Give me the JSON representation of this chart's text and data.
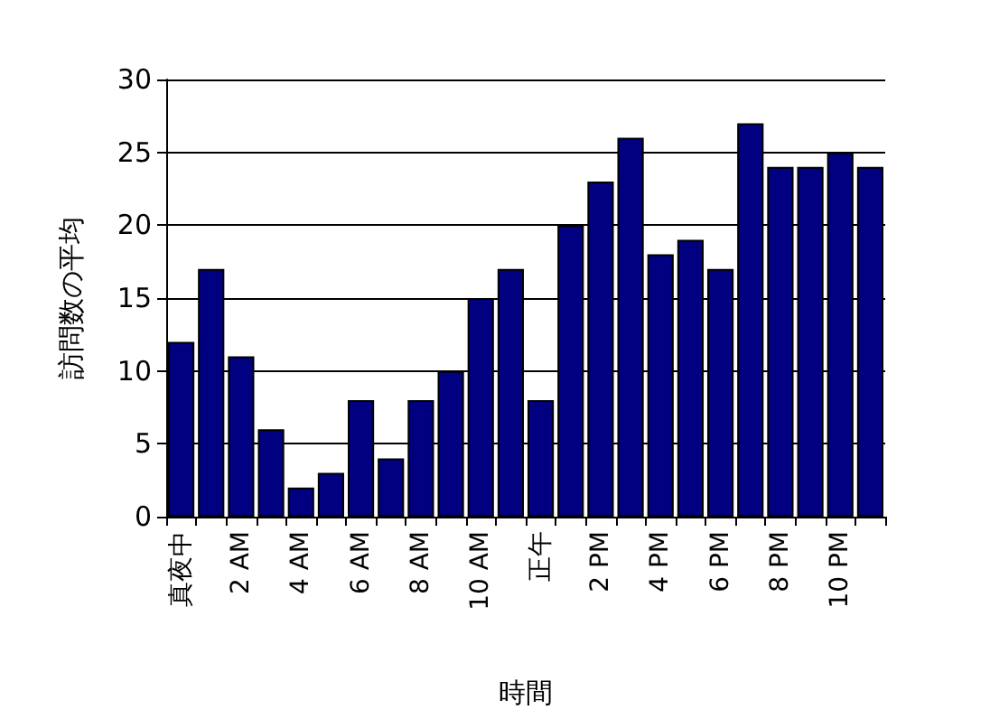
{
  "chart_data": {
    "type": "bar",
    "xlabel": "時間",
    "ylabel": "訪問数の平均",
    "categories": [
      "真夜中",
      null,
      "2 AM",
      null,
      "4 AM",
      null,
      "6 AM",
      null,
      "8 AM",
      null,
      "10 AM",
      null,
      "正午",
      null,
      "2 PM",
      null,
      "4 PM",
      null,
      "6 PM",
      null,
      "8 PM",
      null,
      "10 PM",
      null
    ],
    "values": [
      12,
      17,
      11,
      6,
      2,
      3,
      8,
      4,
      8,
      10,
      15,
      17,
      8,
      20,
      23,
      26,
      18,
      19,
      17,
      27,
      24,
      24,
      25,
      24
    ],
    "color": "#000080",
    "ylim": [
      0,
      30
    ],
    "yticks": [
      0,
      5,
      10,
      15,
      20,
      25,
      30
    ],
    "grid": "y"
  }
}
